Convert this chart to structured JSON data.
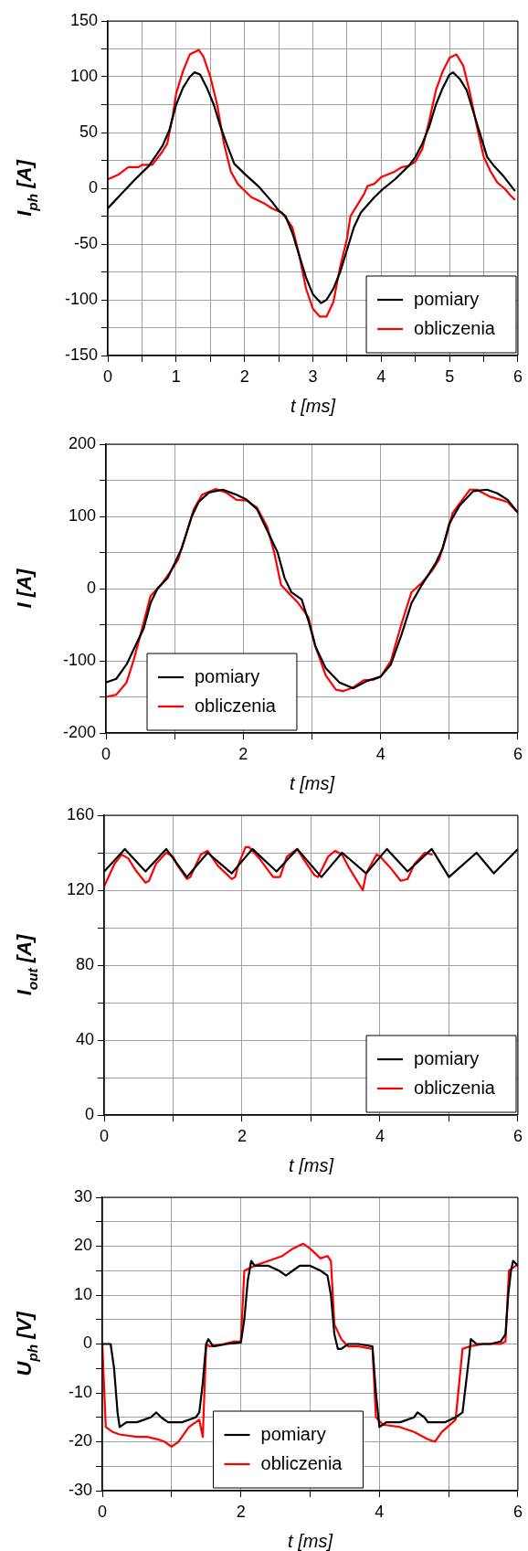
{
  "chart_data": [
    {
      "type": "line",
      "xlabel": "t [ms]",
      "ylabel": "I$_{ph}$ [A]",
      "xlim": [
        0,
        6
      ],
      "ylim": [
        -150,
        150
      ],
      "grid": true,
      "legend": "bottom right",
      "xticks": [
        0,
        {
          "value": 0.5,
          "label": null
        },
        1,
        {
          "value": 1.5,
          "label": null
        },
        2,
        {
          "value": 2.5,
          "label": null
        },
        3,
        {
          "value": 3.5,
          "label": null
        },
        4,
        {
          "value": 4.5,
          "label": null
        },
        5,
        {
          "value": 5.5,
          "label": null
        },
        6
      ],
      "yticks": [
        -150,
        {
          "value": -125,
          "label": null
        },
        -100,
        {
          "value": -75,
          "label": null
        },
        -50,
        {
          "value": -25,
          "label": null
        },
        0,
        {
          "value": 25,
          "label": null
        },
        50,
        {
          "value": 75,
          "label": null
        },
        100,
        {
          "value": 125,
          "label": null
        },
        150
      ],
      "series": [
        {
          "name": "pomiary",
          "color": "#000000",
          "x": [
            0,
            0.2,
            0.4,
            0.6,
            0.8,
            0.9,
            1.0,
            1.1,
            1.2,
            1.27,
            1.35,
            1.45,
            1.55,
            1.65,
            1.75,
            1.85,
            2.0,
            2.2,
            2.4,
            2.5,
            2.6,
            2.7,
            2.8,
            2.9,
            3.0,
            3.12,
            3.2,
            3.3,
            3.4,
            3.5,
            3.6,
            3.7,
            3.8,
            3.9,
            4.0,
            4.2,
            4.4,
            4.5,
            4.6,
            4.7,
            4.8,
            4.9,
            5.0,
            5.05,
            5.15,
            5.25,
            5.35,
            5.45,
            5.55,
            5.65,
            5.8,
            5.95
          ],
          "values": [
            -18,
            -5,
            8,
            20,
            38,
            52,
            75,
            90,
            100,
            104,
            102,
            90,
            75,
            55,
            38,
            22,
            13,
            2,
            -12,
            -20,
            -25,
            -40,
            -60,
            -80,
            -95,
            -103,
            -100,
            -90,
            -75,
            -55,
            -35,
            -22,
            -15,
            -8,
            -2,
            8,
            20,
            28,
            40,
            55,
            75,
            90,
            102,
            104,
            98,
            88,
            68,
            48,
            28,
            20,
            10,
            -2
          ]
        },
        {
          "name": "obliczenia",
          "color": "#ff0000",
          "x": [
            0,
            0.15,
            0.3,
            0.45,
            0.5,
            0.65,
            0.8,
            0.87,
            0.95,
            1.0,
            1.1,
            1.2,
            1.33,
            1.4,
            1.5,
            1.6,
            1.7,
            1.8,
            1.9,
            2.0,
            2.1,
            2.3,
            2.4,
            2.55,
            2.7,
            2.8,
            2.9,
            3.0,
            3.1,
            3.2,
            3.3,
            3.4,
            3.5,
            3.55,
            3.65,
            3.75,
            3.8,
            3.9,
            4.0,
            4.2,
            4.3,
            4.4,
            4.5,
            4.6,
            4.7,
            4.8,
            4.9,
            5.0,
            5.1,
            5.2,
            5.3,
            5.4,
            5.5,
            5.6,
            5.7,
            5.8,
            5.9,
            5.95
          ],
          "values": [
            8,
            12,
            19,
            19,
            21,
            21,
            33,
            40,
            65,
            85,
            105,
            120,
            124,
            118,
            100,
            75,
            40,
            15,
            4,
            -2,
            -8,
            -14,
            -18,
            -22,
            -35,
            -60,
            -90,
            -108,
            -115,
            -115,
            -102,
            -70,
            -45,
            -25,
            -15,
            -5,
            2,
            4,
            10,
            15,
            19,
            20,
            24,
            35,
            60,
            88,
            105,
            117,
            120,
            110,
            85,
            55,
            28,
            15,
            5,
            0,
            -7,
            -10
          ]
        }
      ]
    },
    {
      "type": "line",
      "xlabel": "t [ms]",
      "ylabel": "I [A]",
      "xlim": [
        0,
        6
      ],
      "ylim": [
        -200,
        200
      ],
      "grid": true,
      "legend": "bottom left",
      "xticks": [
        0,
        {
          "value": 1,
          "label": null
        },
        2,
        {
          "value": 3,
          "label": null
        },
        4,
        {
          "value": 5,
          "label": null
        },
        6
      ],
      "yticks": [
        -200,
        {
          "value": -150,
          "label": null
        },
        -100,
        {
          "value": -50,
          "label": null
        },
        0,
        {
          "value": 50,
          "label": null
        },
        100,
        {
          "value": 150,
          "label": null
        },
        200
      ],
      "series": [
        {
          "name": "pomiary",
          "color": "#000000",
          "x": [
            0,
            0.15,
            0.3,
            0.45,
            0.55,
            0.65,
            0.75,
            0.9,
            1.0,
            1.1,
            1.25,
            1.35,
            1.5,
            1.7,
            1.9,
            2.05,
            2.2,
            2.35,
            2.5,
            2.6,
            2.7,
            2.85,
            2.95,
            3.05,
            3.2,
            3.4,
            3.6,
            3.8,
            4.0,
            4.15,
            4.3,
            4.45,
            4.6,
            4.8,
            4.9,
            5.0,
            5.15,
            5.35,
            5.55,
            5.7,
            5.85,
            6.0
          ],
          "values": [
            -130,
            -125,
            -105,
            -75,
            -55,
            -20,
            0,
            15,
            35,
            55,
            100,
            120,
            133,
            137,
            130,
            123,
            110,
            80,
            50,
            15,
            -5,
            -15,
            -45,
            -80,
            -110,
            -130,
            -138,
            -128,
            -122,
            -105,
            -65,
            -20,
            5,
            35,
            55,
            90,
            115,
            135,
            137,
            132,
            123,
            105
          ]
        },
        {
          "name": "obliczenia",
          "color": "#ff0000",
          "x": [
            0,
            0.15,
            0.3,
            0.4,
            0.5,
            0.65,
            0.8,
            0.95,
            1.05,
            1.15,
            1.28,
            1.4,
            1.6,
            1.75,
            1.9,
            2.05,
            2.2,
            2.35,
            2.45,
            2.55,
            2.7,
            2.8,
            2.95,
            3.05,
            3.2,
            3.35,
            3.45,
            3.6,
            3.75,
            3.9,
            4.0,
            4.15,
            4.3,
            4.45,
            4.6,
            4.75,
            4.85,
            4.95,
            5.05,
            5.3,
            5.4,
            5.6,
            5.75,
            5.85,
            5.97
          ],
          "values": [
            -150,
            -147,
            -130,
            -100,
            -65,
            -10,
            5,
            25,
            40,
            70,
            110,
            130,
            138,
            133,
            123,
            122,
            112,
            85,
            50,
            5,
            -10,
            -20,
            -40,
            -80,
            -120,
            -140,
            -142,
            -137,
            -127,
            -126,
            -122,
            -100,
            -50,
            -5,
            8,
            25,
            40,
            70,
            105,
            137,
            137,
            127,
            123,
            120,
            108
          ]
        }
      ]
    },
    {
      "type": "line",
      "xlabel": "t [ms]",
      "ylabel": "I$_{out}$ [A]",
      "xlim": [
        0,
        6
      ],
      "ylim": [
        0,
        160
      ],
      "grid": true,
      "legend": "bottom right",
      "xticks": [
        0,
        {
          "value": 1,
          "label": null
        },
        2,
        {
          "value": 3,
          "label": null
        },
        4,
        {
          "value": 5,
          "label": null
        },
        6
      ],
      "yticks": [
        0,
        {
          "value": 20,
          "label": null
        },
        40,
        {
          "value": 60,
          "label": null
        },
        80,
        {
          "value": 100,
          "label": null
        },
        120,
        {
          "value": 140,
          "label": null
        },
        160
      ],
      "series": [
        {
          "name": "pomiary",
          "color": "#000000",
          "x": [
            0,
            0.3,
            0.6,
            0.9,
            1.2,
            1.5,
            1.85,
            2.15,
            2.5,
            2.8,
            3.15,
            3.45,
            3.8,
            4.1,
            4.4,
            4.75,
            5.0,
            5.4,
            5.65,
            6.0
          ],
          "values": [
            130,
            142,
            130,
            142,
            127,
            140,
            129,
            142,
            130,
            142,
            127,
            140,
            129,
            142,
            130,
            142,
            127,
            140,
            129,
            142
          ]
        },
        {
          "name": "obliczenia",
          "color": "#ff0000",
          "x": [
            0,
            0.15,
            0.25,
            0.35,
            0.45,
            0.6,
            0.65,
            0.75,
            0.9,
            1.0,
            1.05,
            1.2,
            1.25,
            1.4,
            1.5,
            1.65,
            1.85,
            1.9,
            1.95,
            2.05,
            2.1,
            2.25,
            2.45,
            2.55,
            2.65,
            2.8,
            2.9,
            3.05,
            3.1,
            3.25,
            3.35,
            3.45,
            3.55,
            3.75,
            3.8,
            3.95,
            4.0,
            4.15,
            4.3,
            4.4,
            4.5,
            4.65,
            4.75
          ],
          "values": [
            122,
            134,
            139,
            137,
            131,
            124,
            125,
            134,
            140,
            138,
            134,
            126,
            127,
            139,
            141,
            133,
            126,
            127,
            134,
            143,
            143,
            137,
            127,
            127,
            138,
            142,
            136,
            128,
            127,
            138,
            141,
            139,
            132,
            120,
            129,
            139,
            138,
            132,
            125,
            126,
            134,
            140,
            139
          ]
        }
      ]
    },
    {
      "type": "line",
      "xlabel": "t [ms]",
      "ylabel": "U$_{ph}$ [V]",
      "xlim": [
        0,
        6
      ],
      "ylim": [
        -30,
        30
      ],
      "grid": true,
      "legend": "bottom",
      "xticks": [
        0,
        {
          "value": 1,
          "label": null
        },
        2,
        {
          "value": 3,
          "label": null
        },
        4,
        {
          "value": 5,
          "label": null
        },
        6
      ],
      "yticks": [
        -30,
        {
          "value": -25,
          "label": null
        },
        -20,
        {
          "value": -15,
          "label": null
        },
        -10,
        {
          "value": -5,
          "label": null
        },
        0,
        {
          "value": 5,
          "label": null
        },
        10,
        {
          "value": 15,
          "label": null
        },
        20,
        {
          "value": 25,
          "label": null
        },
        30
      ],
      "series": [
        {
          "name": "pomiary",
          "color": "#000000",
          "x": [
            0,
            0.12,
            0.17,
            0.22,
            0.25,
            0.35,
            0.5,
            0.7,
            0.78,
            0.85,
            0.95,
            1.15,
            1.35,
            1.4,
            1.45,
            1.48,
            1.5,
            1.53,
            1.6,
            1.8,
            2.0,
            2.05,
            2.1,
            2.15,
            2.2,
            2.4,
            2.55,
            2.65,
            2.75,
            2.85,
            3.0,
            3.15,
            3.25,
            3.3,
            3.35,
            3.4,
            3.45,
            3.55,
            3.7,
            3.9,
            3.95,
            4.0,
            4.1,
            4.3,
            4.5,
            4.55,
            4.65,
            4.7,
            4.95,
            5.1,
            5.2,
            5.25,
            5.3,
            5.32,
            5.4,
            5.6,
            5.75,
            5.82,
            5.86,
            5.9,
            5.93,
            6.0
          ],
          "values": [
            0,
            0,
            -5,
            -14,
            -17,
            -16,
            -16,
            -15,
            -14,
            -15,
            -16,
            -16,
            -15,
            -14,
            -8,
            -3,
            0,
            1,
            -0.5,
            0,
            0.3,
            5,
            13,
            17,
            16,
            16,
            15,
            14,
            15,
            16,
            16,
            15,
            14,
            10,
            2,
            -1,
            -1,
            0,
            0,
            -0.5,
            -10,
            -17,
            -16,
            -16,
            -15,
            -14,
            -15,
            -16,
            -16,
            -15,
            -14,
            -8,
            -2,
            1,
            0,
            0,
            0.5,
            2,
            10,
            15,
            17,
            16
          ]
        },
        {
          "name": "obliczenia",
          "color": "#ff0000",
          "x": [
            0,
            0.05,
            0.15,
            0.25,
            0.5,
            0.65,
            0.8,
            0.9,
            1.0,
            1.1,
            1.25,
            1.4,
            1.45,
            1.5,
            1.55,
            1.75,
            1.9,
            2.0,
            2.05,
            2.2,
            2.4,
            2.6,
            2.75,
            2.9,
            3.0,
            3.15,
            3.25,
            3.3,
            3.35,
            3.45,
            3.55,
            3.7,
            3.9,
            3.95,
            4.05,
            4.3,
            4.5,
            4.7,
            4.8,
            4.9,
            5.1,
            5.2,
            5.3,
            5.5,
            5.75,
            5.82,
            5.87,
            5.97
          ],
          "values": [
            0,
            -17,
            -18,
            -18.5,
            -19,
            -19,
            -19.5,
            -20,
            -21,
            -20,
            -17,
            -15.5,
            -19,
            0,
            -0.5,
            0,
            0.5,
            0.5,
            15,
            16,
            17,
            18,
            19.5,
            20.5,
            19.5,
            17.5,
            18,
            17,
            4,
            1,
            -0.5,
            -0.5,
            -1,
            -15,
            -16.5,
            -17,
            -18,
            -19.5,
            -20,
            -18,
            -15.5,
            -1,
            -0.5,
            0,
            0,
            0.5,
            15,
            16
          ]
        }
      ]
    }
  ]
}
